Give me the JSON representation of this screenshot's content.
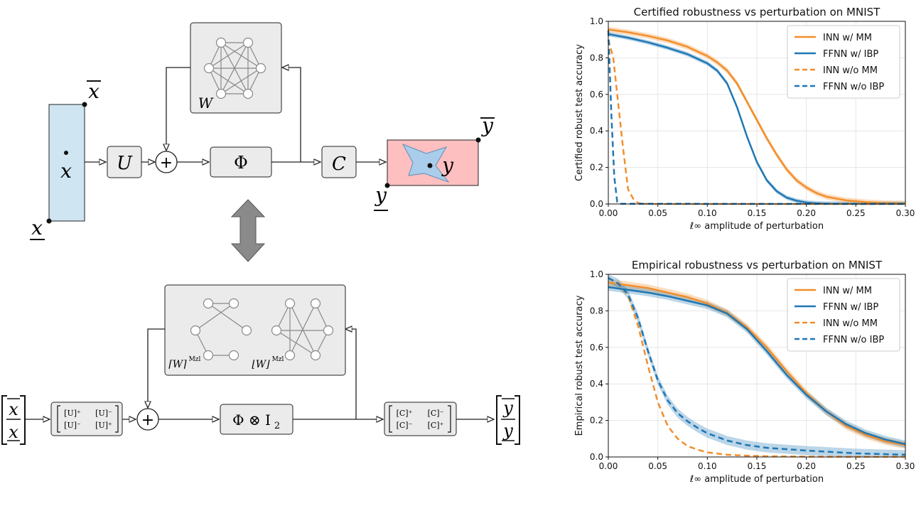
{
  "diagram": {
    "top": {
      "x_var": "x",
      "x_upper": "x",
      "x_lower": "x",
      "U": "U",
      "Phi": "Φ",
      "C": "C",
      "W": "W",
      "y_var": "y",
      "y_upper": "y",
      "y_lower": "y",
      "plus": "+"
    },
    "bottom": {
      "x_num": "x",
      "x_den": "x",
      "U_m11": "[U]⁺",
      "U_m12": "[U]⁻",
      "U_m21": "[U]⁻",
      "U_m22": "[U]⁺",
      "phi_kron": "Φ ⊗ I",
      "phi_sub": "2",
      "C_m11": "[C]⁺",
      "C_m12": "[C]⁻",
      "C_m21": "[C]⁻",
      "C_m22": "[C]⁺",
      "W_ceil": "⌈W⌉",
      "W_floor": "⌊W⌋",
      "mzl": "Mzl",
      "y_num": "y",
      "y_den": "y",
      "plus": "+"
    },
    "colors": {
      "input_box": "#cfe5f2",
      "output_box": "#fdbfc0",
      "shape_fill": "#a9cdea",
      "block_fill": "#ebebeb",
      "arrow_gray": "#8a8a8a"
    }
  },
  "chart_data": [
    {
      "type": "line",
      "title": "Certified robustness vs perturbation on MNIST",
      "xlabel": "ℓ∞ amplitude of perturbation",
      "ylabel": "Certified robust test accuracy",
      "xlim": [
        0,
        0.3
      ],
      "ylim": [
        0,
        1
      ],
      "xticks": [
        "0.00",
        "0.05",
        "0.10",
        "0.15",
        "0.20",
        "0.25",
        "0.30"
      ],
      "yticks": [
        "0.0",
        "0.2",
        "0.4",
        "0.6",
        "0.8",
        "1.0"
      ],
      "grid": true,
      "legend": "top-right",
      "series": [
        {
          "name": "INN w/ MM",
          "color": "#f28e2b",
          "dash": false,
          "x": [
            0,
            0.02,
            0.04,
            0.06,
            0.08,
            0.1,
            0.11,
            0.12,
            0.13,
            0.14,
            0.15,
            0.16,
            0.17,
            0.18,
            0.19,
            0.2,
            0.21,
            0.22,
            0.24,
            0.26,
            0.28,
            0.3
          ],
          "values": [
            0.955,
            0.94,
            0.92,
            0.895,
            0.86,
            0.81,
            0.775,
            0.73,
            0.66,
            0.56,
            0.46,
            0.36,
            0.27,
            0.19,
            0.13,
            0.09,
            0.06,
            0.04,
            0.02,
            0.01,
            0.005,
            0.003
          ],
          "band": 0.015
        },
        {
          "name": "FFNN w/ IBP",
          "color": "#1f77b4",
          "dash": false,
          "x": [
            0,
            0.02,
            0.04,
            0.06,
            0.08,
            0.1,
            0.11,
            0.12,
            0.13,
            0.14,
            0.15,
            0.16,
            0.17,
            0.18,
            0.19,
            0.2,
            0.21,
            0.22,
            0.24,
            0.26,
            0.3
          ],
          "values": [
            0.93,
            0.91,
            0.885,
            0.855,
            0.82,
            0.77,
            0.73,
            0.66,
            0.53,
            0.37,
            0.23,
            0.13,
            0.07,
            0.035,
            0.018,
            0.008,
            0.004,
            0.002,
            0.001,
            0.001,
            0.001
          ],
          "band": 0.012
        },
        {
          "name": "INN w/o MM",
          "color": "#f28e2b",
          "dash": true,
          "x": [
            0,
            0.005,
            0.01,
            0.015,
            0.02,
            0.025,
            0.03,
            0.035,
            0.05,
            0.3
          ],
          "values": [
            0.9,
            0.8,
            0.55,
            0.3,
            0.08,
            0.03,
            0.005,
            0.001,
            0.0,
            0.0
          ],
          "band": 0
        },
        {
          "name": "FFNN w/o IBP",
          "color": "#1f77b4",
          "dash": true,
          "x": [
            0,
            0.003,
            0.006,
            0.009,
            0.012,
            0.3
          ],
          "values": [
            0.95,
            0.5,
            0.15,
            0.01,
            0.001,
            0.0
          ],
          "band": 0
        }
      ]
    },
    {
      "type": "line",
      "title": "Empirical robustness vs perturbation on MNIST",
      "xlabel": "ℓ∞ amplitude of perturbation",
      "ylabel": "Empirical robust test accuracy",
      "xlim": [
        0,
        0.3
      ],
      "ylim": [
        0,
        1
      ],
      "xticks": [
        "0.00",
        "0.05",
        "0.10",
        "0.15",
        "0.20",
        "0.25",
        "0.30"
      ],
      "yticks": [
        "0.0",
        "0.2",
        "0.4",
        "0.6",
        "0.8",
        "1.0"
      ],
      "grid": true,
      "legend": "top-right",
      "series": [
        {
          "name": "INN w/ MM",
          "color": "#f28e2b",
          "dash": false,
          "x": [
            0,
            0.02,
            0.04,
            0.06,
            0.08,
            0.1,
            0.12,
            0.14,
            0.16,
            0.18,
            0.2,
            0.22,
            0.24,
            0.26,
            0.28,
            0.3
          ],
          "values": [
            0.955,
            0.94,
            0.925,
            0.9,
            0.875,
            0.84,
            0.79,
            0.71,
            0.6,
            0.47,
            0.35,
            0.25,
            0.17,
            0.12,
            0.085,
            0.065
          ],
          "band": 0.02
        },
        {
          "name": "FFNN w/ IBP",
          "color": "#1f77b4",
          "dash": false,
          "x": [
            0,
            0.02,
            0.04,
            0.06,
            0.08,
            0.1,
            0.12,
            0.14,
            0.16,
            0.18,
            0.2,
            0.22,
            0.24,
            0.26,
            0.28,
            0.3
          ],
          "values": [
            0.93,
            0.915,
            0.9,
            0.88,
            0.855,
            0.83,
            0.785,
            0.7,
            0.58,
            0.45,
            0.34,
            0.25,
            0.18,
            0.13,
            0.095,
            0.07
          ],
          "band": 0.02
        },
        {
          "name": "INN w/o MM",
          "color": "#f28e2b",
          "dash": true,
          "x": [
            0,
            0.01,
            0.02,
            0.03,
            0.04,
            0.05,
            0.06,
            0.07,
            0.08,
            0.09,
            0.1,
            0.12,
            0.14,
            0.16,
            0.2,
            0.25,
            0.3
          ],
          "values": [
            0.98,
            0.95,
            0.88,
            0.72,
            0.5,
            0.3,
            0.17,
            0.1,
            0.06,
            0.04,
            0.025,
            0.012,
            0.007,
            0.004,
            0.002,
            0.001,
            0.001
          ],
          "band": 0
        },
        {
          "name": "FFNN w/o IBP",
          "color": "#1f77b4",
          "dash": true,
          "x": [
            0,
            0.01,
            0.02,
            0.03,
            0.04,
            0.05,
            0.06,
            0.07,
            0.08,
            0.09,
            0.1,
            0.12,
            0.14,
            0.16,
            0.2,
            0.25,
            0.3
          ],
          "values": [
            0.98,
            0.95,
            0.89,
            0.76,
            0.58,
            0.42,
            0.31,
            0.24,
            0.195,
            0.16,
            0.13,
            0.09,
            0.065,
            0.05,
            0.035,
            0.02,
            0.012
          ],
          "band": 0.025
        }
      ]
    }
  ]
}
